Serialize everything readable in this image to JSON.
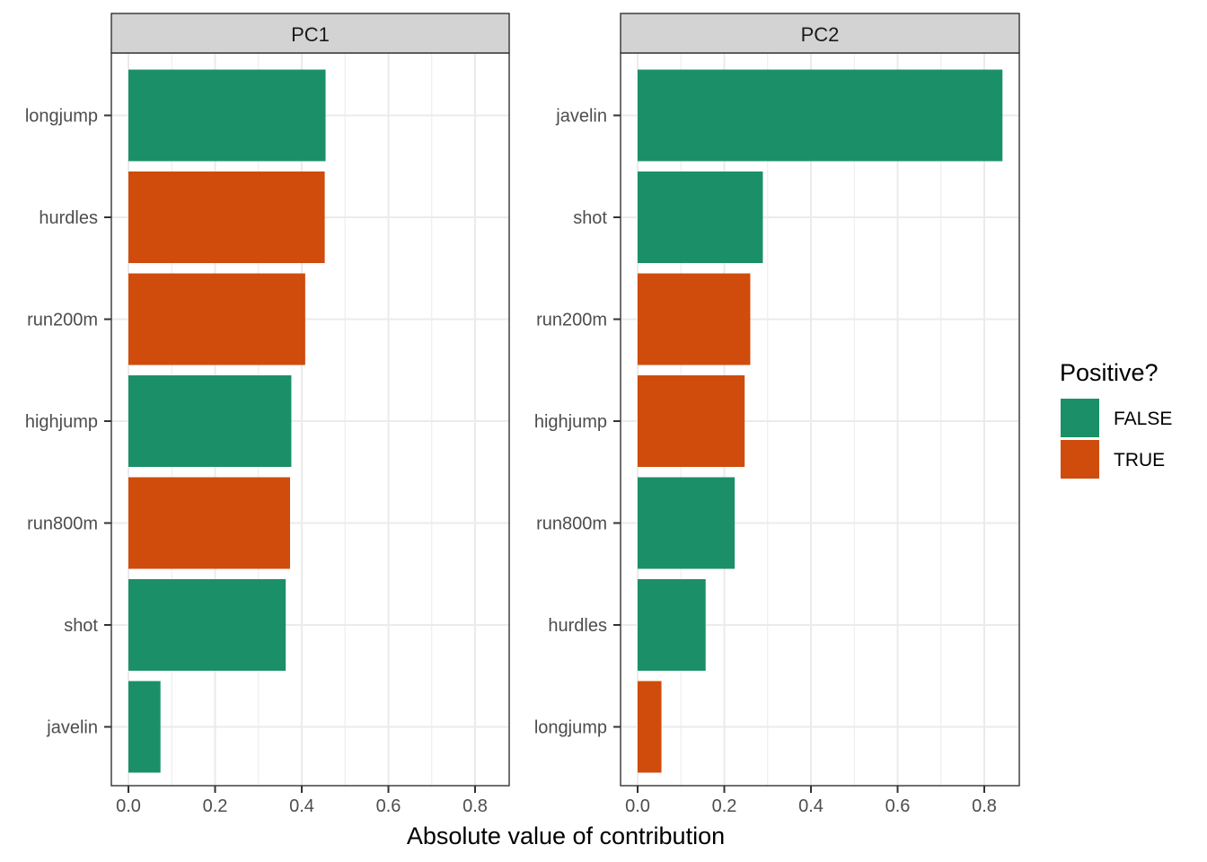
{
  "chart_data": {
    "type": "bar",
    "orientation": "horizontal",
    "xlabel": "Absolute value of contribution",
    "xlim": [
      0,
      0.88
    ],
    "xticks": [
      0,
      0.2,
      0.4,
      0.6,
      0.8
    ],
    "xtick_labels": [
      "0.0",
      "0.2",
      "0.4",
      "0.6",
      "0.8"
    ],
    "grid": true,
    "legend": {
      "title": "Positive?",
      "placement": "right",
      "entries": [
        {
          "label": "FALSE",
          "color": "#1B9068"
        },
        {
          "label": "TRUE",
          "color": "#CF4C0C"
        }
      ]
    },
    "panels": [
      {
        "title": "PC1",
        "bars": [
          {
            "category": "longjump",
            "value": 0.455,
            "positive": "FALSE"
          },
          {
            "category": "hurdles",
            "value": 0.453,
            "positive": "TRUE"
          },
          {
            "category": "run200m",
            "value": 0.408,
            "positive": "TRUE"
          },
          {
            "category": "highjump",
            "value": 0.376,
            "positive": "FALSE"
          },
          {
            "category": "run800m",
            "value": 0.373,
            "positive": "TRUE"
          },
          {
            "category": "shot",
            "value": 0.363,
            "positive": "FALSE"
          },
          {
            "category": "javelin",
            "value": 0.074,
            "positive": "FALSE"
          }
        ]
      },
      {
        "title": "PC2",
        "bars": [
          {
            "category": "javelin",
            "value": 0.842,
            "positive": "FALSE"
          },
          {
            "category": "shot",
            "value": 0.289,
            "positive": "FALSE"
          },
          {
            "category": "run200m",
            "value": 0.26,
            "positive": "TRUE"
          },
          {
            "category": "highjump",
            "value": 0.247,
            "positive": "TRUE"
          },
          {
            "category": "run800m",
            "value": 0.224,
            "positive": "FALSE"
          },
          {
            "category": "hurdles",
            "value": 0.157,
            "positive": "FALSE"
          },
          {
            "category": "longjump",
            "value": 0.055,
            "positive": "TRUE"
          }
        ]
      }
    ]
  }
}
